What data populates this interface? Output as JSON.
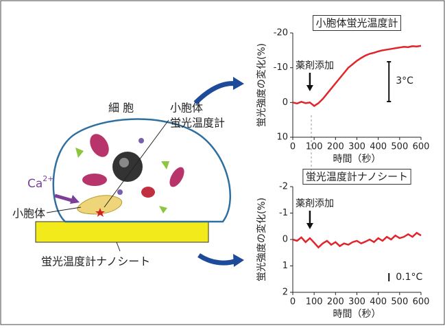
{
  "diagram": {
    "cell": "細 胞",
    "er_thermometer": [
      "小胞体",
      "蛍光温度計"
    ],
    "ca": "Ca",
    "ca_sup": "2+",
    "er": "小胞体",
    "nanosheet": "蛍光温度計ナノシート"
  },
  "chart_data": [
    {
      "type": "line",
      "title": "小胞体蛍光温度計",
      "xlabel": "時間（秒）",
      "ylabel": "蛍光強度の変化(%)",
      "annotation": "薬剤添加",
      "scale_label": "3°C",
      "x": [
        0,
        20,
        40,
        60,
        80,
        100,
        120,
        140,
        160,
        180,
        200,
        220,
        240,
        260,
        280,
        300,
        320,
        340,
        360,
        380,
        400,
        420,
        440,
        460,
        480,
        500,
        520,
        540,
        560,
        580,
        600
      ],
      "series": [
        {
          "color": "#e0242a",
          "values": [
            0,
            0.3,
            -0.2,
            0.2,
            0,
            1,
            0.2,
            -1,
            -2.5,
            -4,
            -5.5,
            -7,
            -8.5,
            -10,
            -11,
            -12,
            -12.8,
            -13.5,
            -14,
            -14.3,
            -14.7,
            -15,
            -15.2,
            -15.4,
            -15.6,
            -15.8,
            -16,
            -15.9,
            -16.2,
            -16.1,
            -16.3
          ]
        }
      ],
      "xlim": [
        0,
        600
      ],
      "xticks": [
        0,
        100,
        200,
        300,
        400,
        500,
        600
      ],
      "ylim": [
        10,
        -20
      ],
      "yticks": [
        -20,
        -10,
        0,
        10
      ]
    },
    {
      "type": "line",
      "title": "蛍光温度計ナノシート",
      "xlabel": "時間（秒）",
      "ylabel": "蛍光強度の変化(%)",
      "annotation": "薬剤添加",
      "scale_label": "0.1°C",
      "x": [
        0,
        20,
        40,
        60,
        80,
        100,
        120,
        140,
        160,
        180,
        200,
        220,
        240,
        260,
        280,
        300,
        320,
        340,
        360,
        380,
        400,
        420,
        440,
        460,
        480,
        500,
        520,
        540,
        560,
        580,
        600
      ],
      "series": [
        {
          "color": "#e0242a",
          "values": [
            0,
            0.05,
            -0.08,
            0.1,
            -0.05,
            0.12,
            0.3,
            0.15,
            0.05,
            0.2,
            0.1,
            0.25,
            0.15,
            0.2,
            0.1,
            0.05,
            0.15,
            0.08,
            0,
            0.1,
            -0.05,
            0.05,
            -0.1,
            0,
            -0.15,
            -0.05,
            -0.1,
            -0.2,
            -0.1,
            -0.25,
            -0.15
          ]
        }
      ],
      "xlim": [
        0,
        600
      ],
      "xticks": [
        0,
        100,
        200,
        300,
        400,
        500,
        600
      ],
      "ylim": [
        2,
        -2
      ],
      "yticks": [
        -2,
        -1,
        0,
        1,
        2
      ]
    }
  ]
}
